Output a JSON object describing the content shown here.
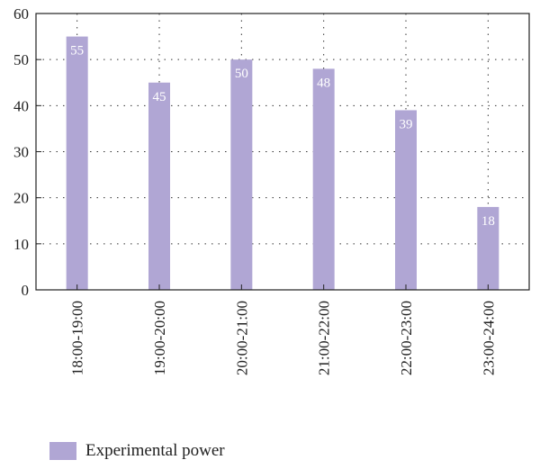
{
  "chart_data": {
    "type": "bar",
    "categories": [
      "18:00-19:00",
      "19:00-20:00",
      "20:00-21:00",
      "21:00-22:00",
      "22:00-23:00",
      "23:00-24:00"
    ],
    "series": [
      {
        "name": "Experimental power",
        "values": [
          55,
          45,
          50,
          48,
          39,
          18
        ],
        "color": "#b0a6d4"
      }
    ],
    "data_labels": [
      "55",
      "45",
      "50",
      "48",
      "39",
      "18"
    ],
    "ylim": [
      0,
      60
    ],
    "yticks": [
      0,
      10,
      20,
      30,
      40,
      50,
      60
    ],
    "grid": "dotted",
    "legend_position": "bottom-left",
    "title": "",
    "xlabel": "",
    "ylabel": ""
  }
}
